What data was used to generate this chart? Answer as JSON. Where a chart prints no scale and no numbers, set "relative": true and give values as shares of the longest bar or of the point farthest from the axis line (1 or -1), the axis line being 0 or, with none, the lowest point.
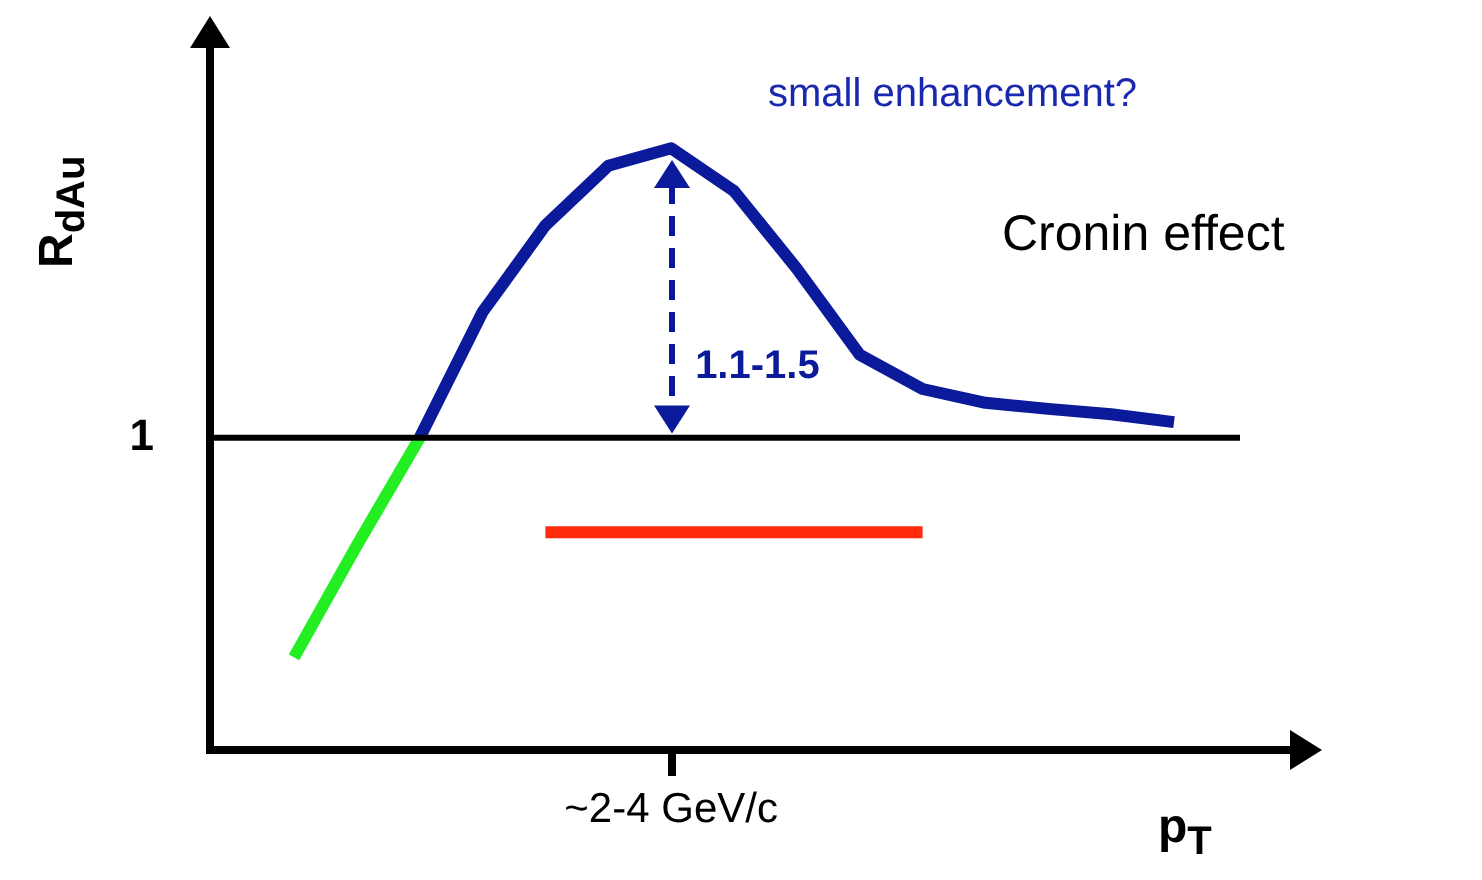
{
  "chart_data": {
    "type": "line",
    "relative": true,
    "xlabel": "p$_{T}$",
    "ylabel": "R$_{dAu}$",
    "categories": [
      null,
      null,
      null,
      null,
      null,
      null,
      null,
      null,
      null,
      null,
      null,
      null,
      null,
      null,
      null
    ],
    "series": [
      {
        "color": "#22ee22",
        "values": [
          0.154,
          0.34,
          0.519,
          null,
          null,
          null,
          null,
          null,
          null,
          null,
          null,
          null,
          null,
          null,
          null
        ]
      },
      {
        "color": "#0a1a9a",
        "values": [
          null,
          null,
          0.519,
          0.728,
          0.872,
          0.971,
          1,
          0.929,
          0.8,
          0.657,
          0.6,
          0.577,
          0.567,
          0.558,
          0.545
        ]
      },
      {
        "color": "#ff2a0a",
        "values": [
          null,
          null,
          null,
          null,
          0.362,
          0.362,
          0.362,
          0.362,
          0.362,
          0.362,
          0.362,
          null,
          null,
          null,
          null
        ]
      }
    ],
    "ref_lines": [
      {
        "axis": "y",
        "value": 0.519,
        "label": "1",
        "color": "#000000"
      }
    ],
    "annotations": [
      "small enhancement?",
      "Cronin effect",
      "1.1-1.5",
      "~2-4 GeV/c"
    ],
    "legend": false,
    "line_style": "solid",
    "marker": "none"
  }
}
